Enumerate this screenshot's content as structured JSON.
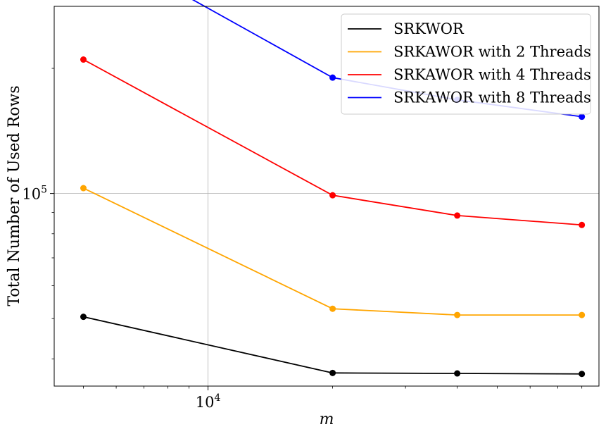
{
  "chart_data": {
    "type": "line",
    "title": "",
    "xlabel": "m",
    "ylabel": "Total Number of Used Rows",
    "xscale": "log",
    "yscale": "log",
    "xlim": [
      4250,
      88000
    ],
    "ylim": [
      34400,
      282000
    ],
    "grid": true,
    "legend_position": "top-right",
    "x": [
      5000,
      20000,
      40000,
      80000
    ],
    "x_ticks": [
      {
        "value": 10000,
        "base": "10",
        "exp": "4"
      }
    ],
    "y_ticks": [
      {
        "value": 100000,
        "base": "10",
        "exp": "5"
      }
    ],
    "series": [
      {
        "name": "SRKWOR",
        "color": "#000000",
        "values": [
          50500,
          37000,
          36900,
          36800
        ]
      },
      {
        "name": "SRKAWOR with 2 Threads",
        "color": "#ffa500",
        "values": [
          103000,
          52800,
          51000,
          51000
        ]
      },
      {
        "name": "SRKAWOR with 4 Threads",
        "color": "#ff0000",
        "values": [
          210000,
          99000,
          88500,
          84000
        ]
      },
      {
        "name": "SRKAWOR with 8 Threads",
        "color": "#0000ff",
        "values": [
          410000,
          190000,
          168000,
          153000
        ]
      }
    ]
  }
}
